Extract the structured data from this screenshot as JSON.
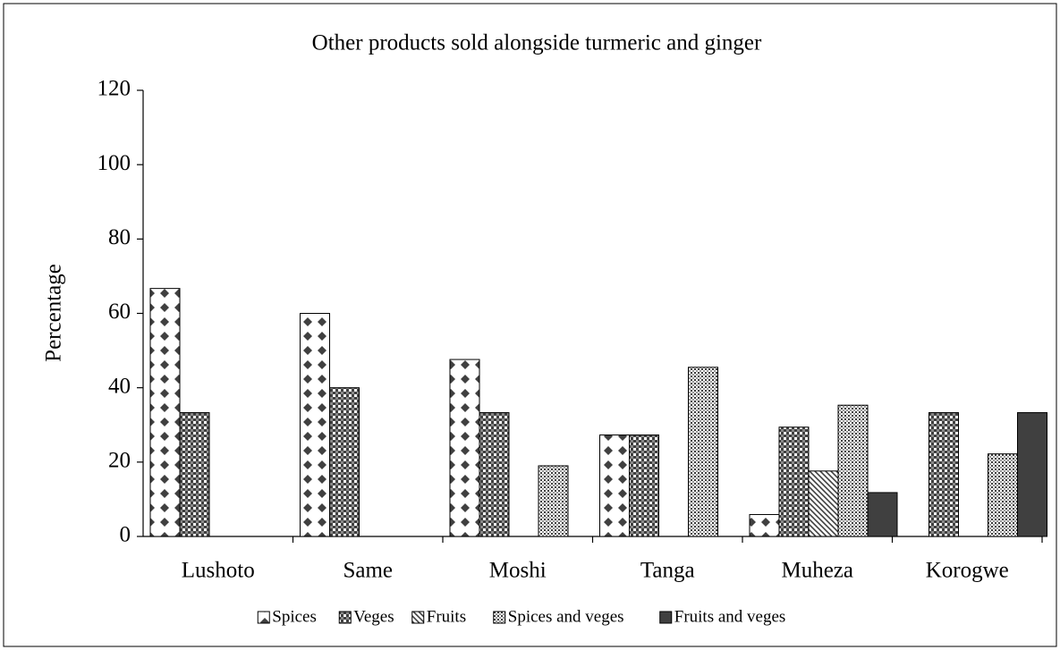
{
  "chart_data": {
    "type": "bar",
    "title": "Other products sold alongside turmeric and ginger",
    "y_label": "Percentage",
    "categories": [
      "Lushoto",
      "Same",
      "Moshi",
      "Tanga",
      "Muheza",
      "Korogwe"
    ],
    "series": [
      {
        "name": "Spices",
        "color": "#404040",
        "pattern": "diamonds",
        "values": [
          66.7,
          60,
          47.6,
          27.3,
          5.9,
          0
        ]
      },
      {
        "name": "Veges",
        "color": "#404040",
        "pattern": "checker",
        "values": [
          33.3,
          40,
          33.3,
          27.3,
          29.4,
          33.3
        ]
      },
      {
        "name": "Fruits",
        "color": "#404040",
        "pattern": "hatch",
        "values": [
          0,
          0,
          0,
          0,
          17.6,
          0
        ]
      },
      {
        "name": "Spices and veges",
        "color": "#404040",
        "pattern": "fine-checker",
        "values": [
          0,
          0,
          19.0,
          45.5,
          35.3,
          22.2
        ]
      },
      {
        "name": "Fruits and veges",
        "color": "#404040",
        "pattern": "solid",
        "values": [
          0,
          0,
          0,
          0,
          11.8,
          33.3
        ]
      }
    ],
    "ylim": [
      0,
      120
    ],
    "yticks": [
      0,
      20,
      40,
      60,
      80,
      100,
      120
    ],
    "grid": false,
    "legend": "bottom"
  }
}
